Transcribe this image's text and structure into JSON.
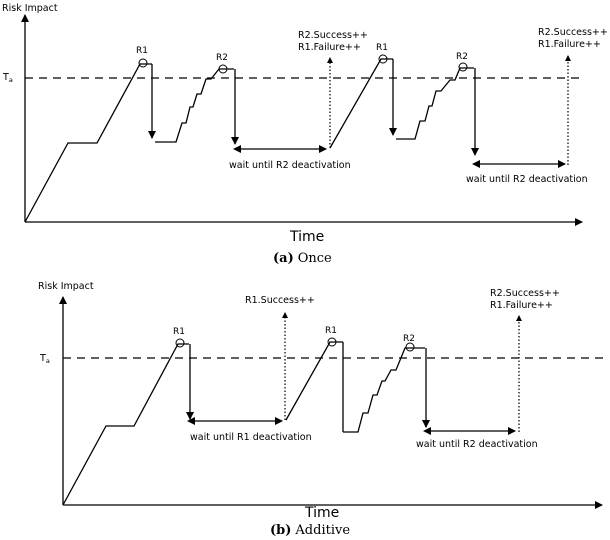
{
  "panel_a": {
    "y_axis_label": "Risk Impact",
    "threshold_label": "T",
    "threshold_sub": "a",
    "x_axis_label": "Time",
    "caption_letter": "(a)",
    "caption_text": "Once",
    "markers": [
      "R1",
      "R2",
      "R1",
      "R2"
    ],
    "event_1": [
      "R2.Success++",
      "R1.Failure++"
    ],
    "event_2": [
      "R2.Success++",
      "R1.Failure++"
    ],
    "wait_1": "wait until R2 deactivation",
    "wait_2": "wait until R2 deactivation"
  },
  "panel_b": {
    "y_axis_label": "Risk Impact",
    "threshold_label": "T",
    "threshold_sub": "a",
    "x_axis_label": "Time",
    "caption_letter": "(b)",
    "caption_text": "Additive",
    "markers": [
      "R1",
      "R1",
      "R2"
    ],
    "event_1": [
      "R1.Success++"
    ],
    "event_2": [
      "R2.Success++",
      "R1.Failure++"
    ],
    "wait_1": "wait until R1 deactivation",
    "wait_2": "wait until R2 deactivation"
  }
}
